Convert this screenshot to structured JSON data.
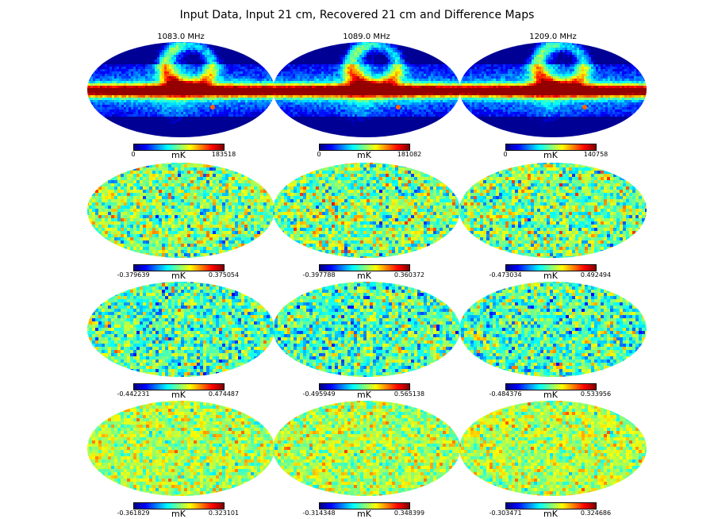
{
  "figure": {
    "title": "Input Data, Input 21 cm, Recovered 21 cm and Difference Maps",
    "columns": [
      "1083.0 MHz",
      "1089.0 MHz",
      "1209.0 MHz"
    ],
    "unit": "mK",
    "colormap": "jet",
    "projection": "mollweide",
    "rows": [
      {
        "kind": "input-data",
        "panels": [
          {
            "min": "0",
            "max": "183518"
          },
          {
            "min": "0",
            "max": "181082"
          },
          {
            "min": "0",
            "max": "140758"
          }
        ]
      },
      {
        "kind": "input-21cm",
        "panels": [
          {
            "min": "-0.379639",
            "max": "0.375054"
          },
          {
            "min": "-0.397788",
            "max": "0.360372"
          },
          {
            "min": "-0.473034",
            "max": "0.492494"
          }
        ]
      },
      {
        "kind": "recovered-21cm",
        "panels": [
          {
            "min": "-0.442231",
            "max": "0.474487"
          },
          {
            "min": "-0.495949",
            "max": "0.565138"
          },
          {
            "min": "-0.484376",
            "max": "0.533956"
          }
        ]
      },
      {
        "kind": "difference",
        "panels": [
          {
            "min": "-0.361829",
            "max": "0.323101"
          },
          {
            "min": "-0.314348",
            "max": "0.348399"
          },
          {
            "min": "-0.303471",
            "max": "0.324686"
          }
        ]
      }
    ]
  }
}
